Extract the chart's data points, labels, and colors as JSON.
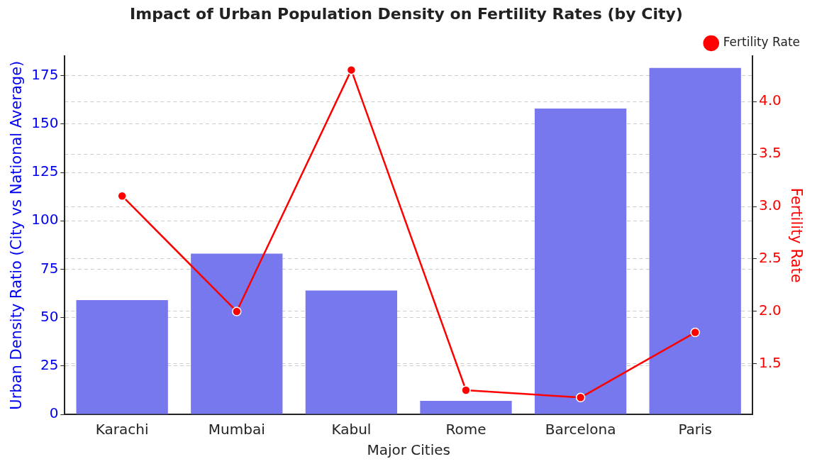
{
  "chart_data": {
    "type": "bar",
    "title": "Impact of Urban Population Density on Fertility Rates (by City)",
    "xlabel": "Major Cities",
    "ylabel": "Urban Density Ratio (City vs National Average)",
    "y2label": "Fertility Rate",
    "categories": [
      "Karachi",
      "Mumbai",
      "Kabul",
      "Rome",
      "Barcelona",
      "Paris"
    ],
    "series": [
      {
        "color": "#7777ee",
        "values": [
          59,
          83,
          64,
          7,
          158,
          179
        ]
      },
      {
        "type": "line",
        "name": "Fertility Rate",
        "color": "#ff0000",
        "axis": "y2",
        "marker": "circle",
        "line_style": "solid",
        "values": [
          3.1,
          2.0,
          4.3,
          1.25,
          1.18,
          1.8
        ]
      }
    ],
    "ylim": [
      0,
      185
    ],
    "yticks": [
      0,
      25,
      50,
      75,
      100,
      125,
      150,
      175
    ],
    "y2lim": [
      1.02,
      4.43
    ],
    "y2ticks": [
      {
        "value": 1.5,
        "label": "1.5"
      },
      {
        "value": 2,
        "label": "2.0"
      },
      {
        "value": 2.5,
        "label": "2.5"
      },
      {
        "value": 3,
        "label": "3.0"
      },
      {
        "value": 3.5,
        "label": "3.5"
      },
      {
        "value": 4,
        "label": "4.0"
      }
    ],
    "grid": true,
    "legend": "top right"
  }
}
